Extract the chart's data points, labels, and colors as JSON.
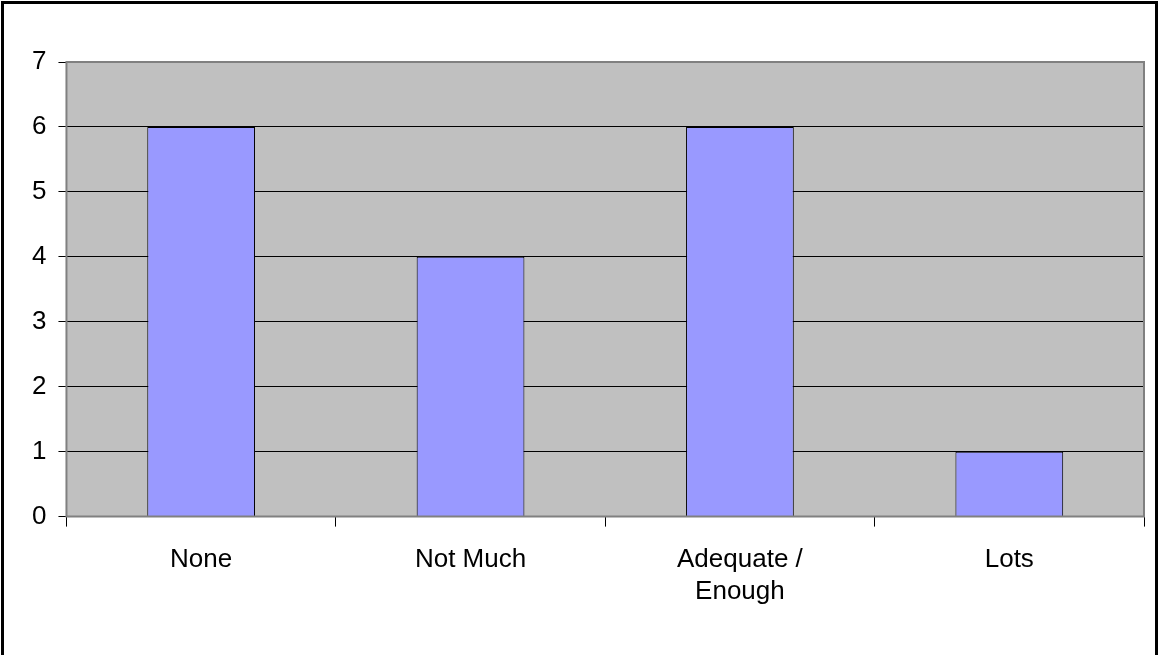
{
  "chart_data": {
    "type": "bar",
    "categories": [
      "None",
      "Not Much",
      "Adequate / Enough",
      "Lots"
    ],
    "values": [
      6,
      4,
      6,
      1
    ],
    "color": "#9999ff",
    "ylim": [
      0,
      7
    ],
    "yticks": [
      0,
      1,
      2,
      3,
      4,
      5,
      6,
      7
    ],
    "grid": "y",
    "legend": false
  }
}
